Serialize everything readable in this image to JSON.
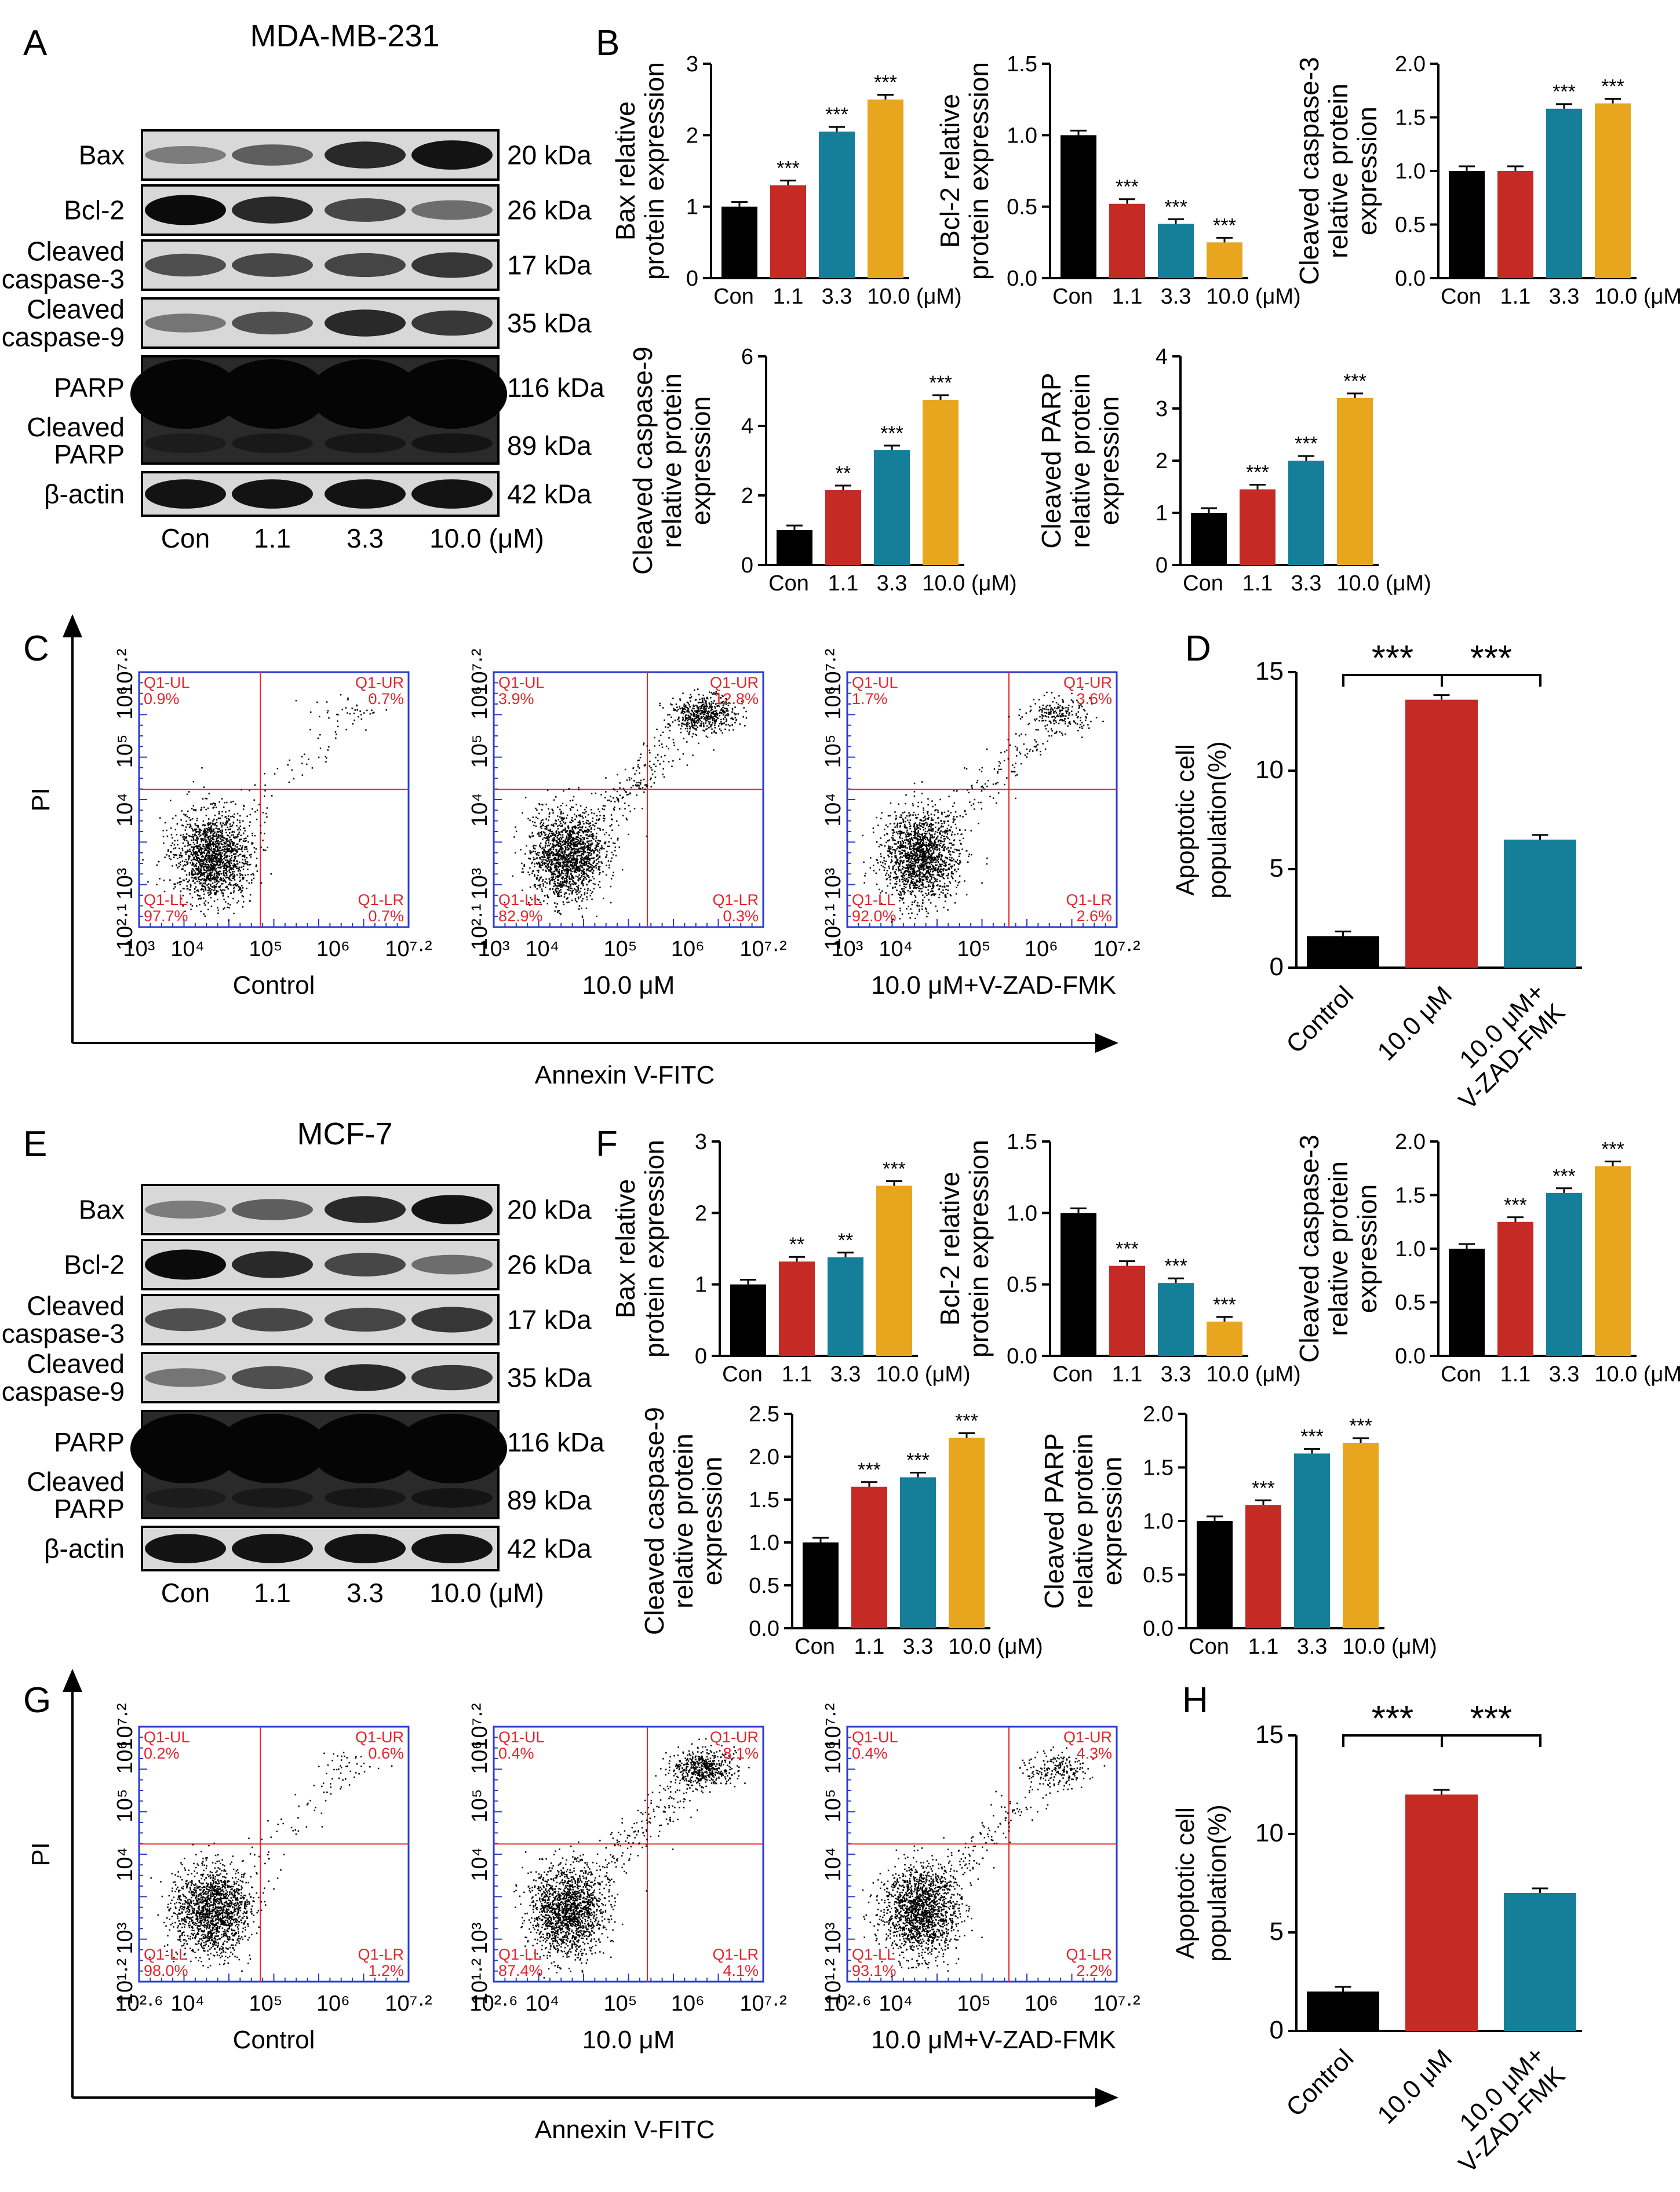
{
  "colors": {
    "con": "#000000",
    "c1": "#c62a25",
    "c2": "#157f99",
    "c3": "#e8a51e",
    "quad": "#e8232b",
    "frame": "#2a3bcc"
  },
  "panels": [
    "A",
    "B",
    "C",
    "D",
    "E",
    "F",
    "G",
    "H"
  ],
  "cell_lines": [
    "MDA-MB-231",
    "MCF-7"
  ],
  "blot": {
    "bands": [
      "Bax",
      "Bcl-2",
      "Cleaved caspase-3",
      "Cleaved caspase-9",
      "PARP",
      "Cleaved PARP",
      "β-actin"
    ],
    "kda": [
      "20 kDa",
      "26 kDa",
      "17 kDa",
      "35 kDa",
      "116 kDa",
      "89 kDa",
      "42 kDa"
    ],
    "lanes": [
      "Con",
      "1.1",
      "3.3",
      "10.0 (μM)"
    ]
  },
  "bar_cats": [
    "Con",
    "1.1",
    "3.3",
    "10.0 (μM)"
  ],
  "flow": {
    "xlabel": "Annexin V-FITC",
    "ylabel": "PI",
    "titles": [
      "Control",
      "10.0 μM",
      "10.0 μM+V-ZAD-FMK"
    ],
    "quad_names": [
      "Q1-UL",
      "Q1-UR",
      "Q1-LL",
      "Q1-LR"
    ],
    "C": {
      "xticks": [
        "10³",
        "10⁴",
        "10⁵",
        "10⁶",
        "10⁷·²"
      ],
      "yticks": [
        "10²·¹",
        "10³",
        "10⁴",
        "10⁵",
        "10⁶",
        "10⁷·²"
      ],
      "quads": [
        [
          "0.9%",
          "0.7%",
          "97.7%",
          "0.7%"
        ],
        [
          "3.9%",
          "12.8%",
          "82.9%",
          "0.3%"
        ],
        [
          "1.7%",
          "3.6%",
          "92.0%",
          "2.6%"
        ]
      ]
    },
    "G": {
      "xticks": [
        "10²·⁶",
        "10⁴",
        "10⁵",
        "10⁶",
        "10⁷·²"
      ],
      "yticks": [
        "10¹·²",
        "10³",
        "10⁴",
        "10⁵",
        "10⁶",
        "10⁷·²"
      ],
      "quads": [
        [
          "0.2%",
          "0.6%",
          "98.0%",
          "1.2%"
        ],
        [
          "0.4%",
          "8.1%",
          "87.4%",
          "4.1%"
        ],
        [
          "0.4%",
          "4.3%",
          "93.1%",
          "2.2%"
        ]
      ]
    }
  },
  "apop": {
    "ylabel": [
      "Apoptotic cell",
      "population(%)"
    ],
    "cats": [
      "Control",
      "10.0 μM",
      "10.0 μM+",
      "V-ZAD-FMK"
    ],
    "sig": [
      "***",
      "***"
    ]
  },
  "chart_data": [
    {
      "panel": "B",
      "type": "bar",
      "ylabel": [
        "Bax relative",
        "protein expression"
      ],
      "categories": [
        "Con",
        "1.1",
        "3.3",
        "10.0 (μM)"
      ],
      "values": [
        1.0,
        1.3,
        2.05,
        2.5
      ],
      "ylim": [
        0,
        3
      ],
      "yticks": [
        "0",
        "1",
        "2",
        "3"
      ],
      "sig": [
        "",
        "***",
        "***",
        "***"
      ]
    },
    {
      "panel": "B",
      "type": "bar",
      "ylabel": [
        "Bcl-2 relative",
        "protein expression"
      ],
      "categories": [
        "Con",
        "1.1",
        "3.3",
        "10.0 (μM)"
      ],
      "values": [
        1.0,
        0.52,
        0.38,
        0.25
      ],
      "ylim": [
        0,
        1.5
      ],
      "yticks": [
        "0.0",
        "0.5",
        "1.0",
        "1.5"
      ],
      "sig": [
        "",
        "***",
        "***",
        "***"
      ]
    },
    {
      "panel": "B",
      "type": "bar",
      "ylabel": [
        "Cleaved caspase-3",
        "relative protein",
        "expression"
      ],
      "categories": [
        "Con",
        "1.1",
        "3.3",
        "10.0 (μM)"
      ],
      "values": [
        1.0,
        1.0,
        1.58,
        1.63
      ],
      "ylim": [
        0,
        2.0
      ],
      "yticks": [
        "0.0",
        "0.5",
        "1.0",
        "1.5",
        "2.0"
      ],
      "sig": [
        "",
        "",
        "***",
        "***"
      ]
    },
    {
      "panel": "B",
      "type": "bar",
      "ylabel": [
        "Cleaved caspase-9",
        "relative protein",
        "expression"
      ],
      "categories": [
        "Con",
        "1.1",
        "3.3",
        "10.0 (μM)"
      ],
      "values": [
        1.0,
        2.15,
        3.3,
        4.75
      ],
      "ylim": [
        0,
        6
      ],
      "yticks": [
        "0",
        "2",
        "4",
        "6"
      ],
      "sig": [
        "",
        "**",
        "***",
        "***"
      ]
    },
    {
      "panel": "B",
      "type": "bar",
      "ylabel": [
        "Cleaved PARP",
        "relative protein",
        "expression"
      ],
      "categories": [
        "Con",
        "1.1",
        "3.3",
        "10.0 (μM)"
      ],
      "values": [
        1.0,
        1.45,
        2.0,
        3.2
      ],
      "ylim": [
        0,
        4
      ],
      "yticks": [
        "0",
        "1",
        "2",
        "3",
        "4"
      ],
      "sig": [
        "",
        "***",
        "***",
        "***"
      ]
    },
    {
      "panel": "D",
      "type": "bar",
      "categories": [
        "Control",
        "10.0 μM",
        "10.0 μM+V-ZAD-FMK"
      ],
      "values": [
        1.6,
        13.6,
        6.5
      ],
      "ylim": [
        0,
        15
      ],
      "yticks": [
        "0",
        "5",
        "10",
        "15"
      ]
    },
    {
      "panel": "F",
      "type": "bar",
      "ylabel": [
        "Bax relative",
        "protein expression"
      ],
      "categories": [
        "Con",
        "1.1",
        "3.3",
        "10.0 (μM)"
      ],
      "values": [
        1.0,
        1.32,
        1.38,
        2.38
      ],
      "ylim": [
        0,
        3
      ],
      "yticks": [
        "0",
        "1",
        "2",
        "3"
      ],
      "sig": [
        "",
        "**",
        "**",
        "***"
      ]
    },
    {
      "panel": "F",
      "type": "bar",
      "ylabel": [
        "Bcl-2 relative",
        "protein expression"
      ],
      "categories": [
        "Con",
        "1.1",
        "3.3",
        "10.0 (μM)"
      ],
      "values": [
        1.0,
        0.63,
        0.51,
        0.24
      ],
      "ylim": [
        0,
        1.5
      ],
      "yticks": [
        "0.0",
        "0.5",
        "1.0",
        "1.5"
      ],
      "sig": [
        "",
        "***",
        "***",
        "***"
      ]
    },
    {
      "panel": "F",
      "type": "bar",
      "ylabel": [
        "Cleaved caspase-3",
        "relative protein",
        "expression"
      ],
      "categories": [
        "Con",
        "1.1",
        "3.3",
        "10.0 (μM)"
      ],
      "values": [
        1.0,
        1.25,
        1.52,
        1.77
      ],
      "ylim": [
        0,
        2.0
      ],
      "yticks": [
        "0.0",
        "0.5",
        "1.0",
        "1.5",
        "2.0"
      ],
      "sig": [
        "",
        "***",
        "***",
        "***"
      ]
    },
    {
      "panel": "F",
      "type": "bar",
      "ylabel": [
        "Cleaved caspase-9",
        "relative protein",
        "expression"
      ],
      "categories": [
        "Con",
        "1.1",
        "3.3",
        "10.0 (μM)"
      ],
      "values": [
        1.0,
        1.65,
        1.76,
        2.22
      ],
      "ylim": [
        0,
        2.5
      ],
      "yticks": [
        "0.0",
        "0.5",
        "1.0",
        "1.5",
        "2.0",
        "2.5"
      ],
      "sig": [
        "",
        "***",
        "***",
        "***"
      ]
    },
    {
      "panel": "F",
      "type": "bar",
      "ylabel": [
        "Cleaved PARP",
        "relative protein",
        "expression"
      ],
      "categories": [
        "Con",
        "1.1",
        "3.3",
        "10.0 (μM)"
      ],
      "values": [
        1.0,
        1.15,
        1.63,
        1.73
      ],
      "ylim": [
        0,
        2.0
      ],
      "yticks": [
        "0.0",
        "0.5",
        "1.0",
        "1.5",
        "2.0"
      ],
      "sig": [
        "",
        "***",
        "***",
        "***"
      ]
    },
    {
      "panel": "H",
      "type": "bar",
      "categories": [
        "Control",
        "10.0 μM",
        "10.0 μM+V-ZAD-FMK"
      ],
      "values": [
        2.0,
        12.0,
        7.0
      ],
      "ylim": [
        0,
        15
      ],
      "yticks": [
        "0",
        "5",
        "10",
        "15"
      ]
    }
  ]
}
